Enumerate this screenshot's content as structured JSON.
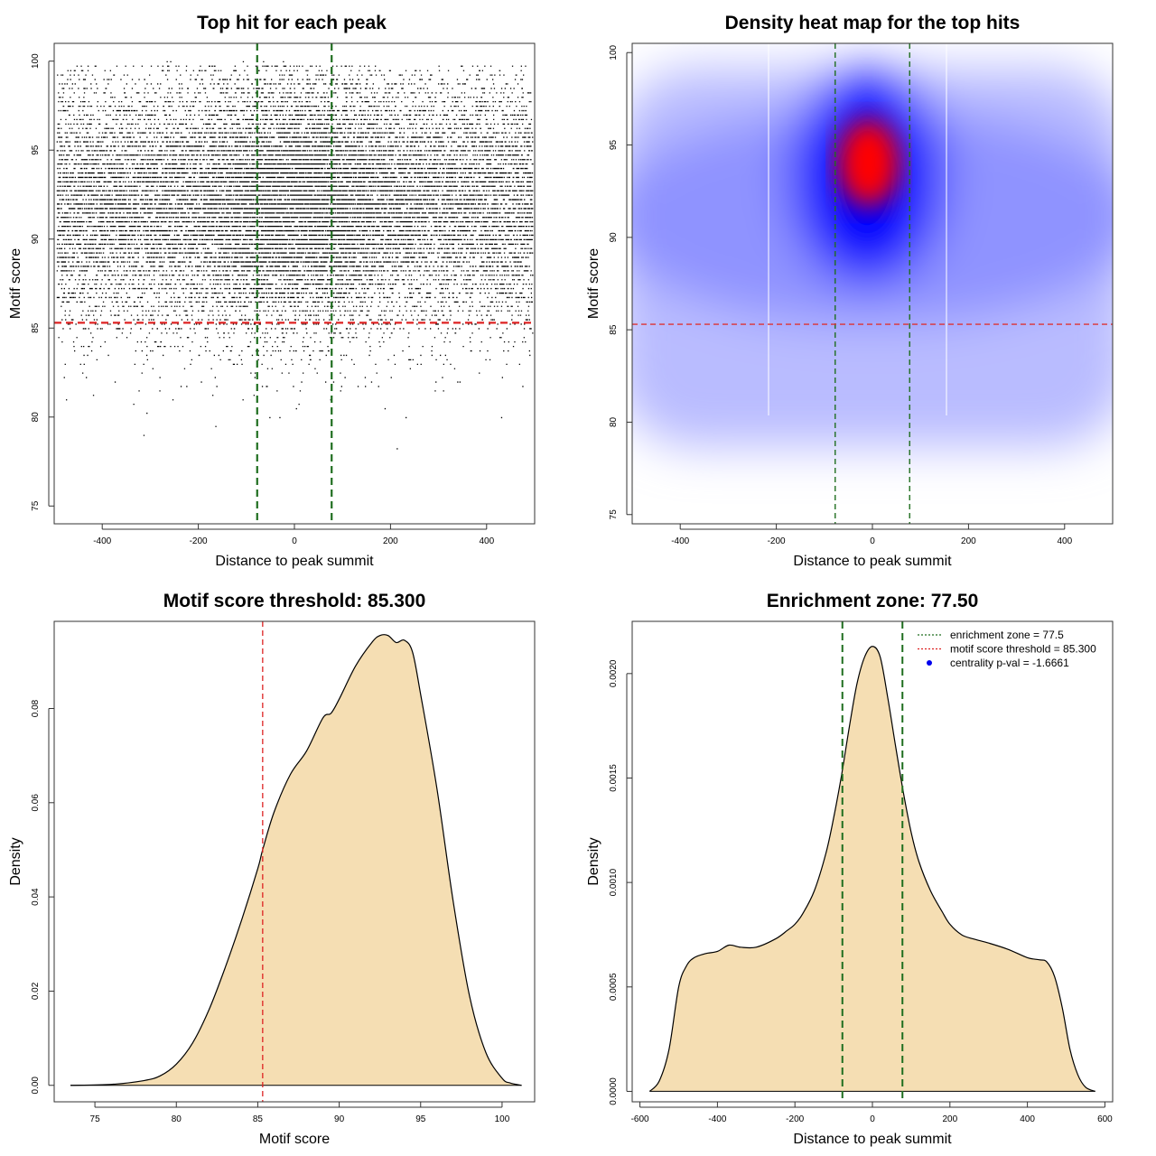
{
  "chart_data": [
    {
      "type": "scatter",
      "title": "Top hit for each peak",
      "xlabel": "Distance to peak summit",
      "ylabel": "Motif score",
      "xlim": [
        -500,
        500
      ],
      "ylim": [
        74,
        101
      ],
      "xticks": [
        -400,
        -200,
        0,
        200,
        400
      ],
      "yticks": [
        75,
        80,
        85,
        90,
        95,
        100
      ],
      "n_points": 20000,
      "point_distribution": {
        "score_mean": 92.0,
        "score_sd": 3.4,
        "central_fraction": 0.25,
        "central_sd": 110
      },
      "hlines": [
        {
          "value": 85.3,
          "color": "#dd2222"
        }
      ],
      "vlines": [
        {
          "value": -77.5,
          "color": "#1f6e1f"
        },
        {
          "value": 77.5,
          "color": "#1f6e1f"
        }
      ]
    },
    {
      "type": "heatmap",
      "title": "Density heat map for the top hits",
      "xlabel": "Distance to peak summit",
      "ylabel": "Motif score",
      "xlim": [
        -500,
        500
      ],
      "ylim": [
        74.5,
        100.5
      ],
      "xticks": [
        -400,
        -200,
        0,
        200,
        400
      ],
      "yticks": [
        75,
        80,
        85,
        90,
        95,
        100
      ],
      "peak": {
        "x": 0,
        "y": 93.5
      },
      "hlines": [
        {
          "value": 85.3,
          "color": "#dd3333"
        }
      ],
      "vlines": [
        {
          "value": -77.5,
          "color": "#1f6e1f"
        },
        {
          "value": 77.5,
          "color": "#1f6e1f"
        }
      ]
    },
    {
      "type": "area",
      "title": "Motif score threshold: 85.300",
      "xlabel": "Motif score",
      "ylabel": "Density",
      "xlim": [
        72.5,
        102
      ],
      "ylim": [
        -0.0035,
        0.0985
      ],
      "xticks": [
        75,
        80,
        85,
        90,
        95,
        100
      ],
      "yticks": [
        0.0,
        0.02,
        0.04,
        0.06,
        0.08
      ],
      "ytick_labels": [
        "0.00",
        "0.02",
        "0.04",
        "0.06",
        "0.08"
      ],
      "x": [
        73.5,
        76,
        78,
        79,
        80,
        81,
        82,
        83,
        84,
        85,
        85.3,
        86,
        87,
        88,
        89,
        89.5,
        90,
        91,
        92,
        92.5,
        93,
        93.5,
        94,
        94.5,
        95,
        96,
        97,
        98,
        99,
        100,
        100.5,
        101.2
      ],
      "values": [
        0.0,
        0.0002,
        0.001,
        0.002,
        0.0045,
        0.009,
        0.016,
        0.025,
        0.035,
        0.046,
        0.05,
        0.058,
        0.066,
        0.071,
        0.078,
        0.079,
        0.082,
        0.089,
        0.094,
        0.0955,
        0.0955,
        0.094,
        0.0945,
        0.092,
        0.083,
        0.063,
        0.039,
        0.019,
        0.007,
        0.0015,
        0.0005,
        0.0
      ],
      "fill": "#f5deb3",
      "vlines": [
        {
          "value": 85.3,
          "color": "#dd2222"
        }
      ]
    },
    {
      "type": "area",
      "title": "Enrichment zone: 77.50",
      "xlabel": "Distance to peak summit",
      "ylabel": "Density",
      "xlim": [
        -620,
        620
      ],
      "ylim": [
        -5e-05,
        0.00225
      ],
      "xticks": [
        -600,
        -400,
        -200,
        0,
        200,
        400,
        600
      ],
      "yticks": [
        0.0,
        0.0005,
        0.001,
        0.0015,
        0.002
      ],
      "ytick_labels": [
        "0.0000",
        "0.0005",
        "0.0010",
        "0.0015",
        "0.0020"
      ],
      "x": [
        -575,
        -550,
        -525,
        -500,
        -480,
        -460,
        -430,
        -400,
        -370,
        -340,
        -300,
        -250,
        -220,
        -200,
        -180,
        -150,
        -120,
        -100,
        -80,
        -60,
        -40,
        -20,
        0,
        20,
        40,
        60,
        80,
        100,
        120,
        150,
        180,
        200,
        230,
        260,
        300,
        350,
        400,
        430,
        450,
        470,
        490,
        510,
        530,
        550,
        575
      ],
      "values": [
        0.0,
        5e-05,
        0.0002,
        0.0005,
        0.0006,
        0.00064,
        0.00066,
        0.00067,
        0.0007,
        0.00069,
        0.00069,
        0.00073,
        0.00077,
        0.0008,
        0.00085,
        0.00096,
        0.00114,
        0.00131,
        0.00151,
        0.00174,
        0.00195,
        0.00208,
        0.00213,
        0.00208,
        0.00188,
        0.00165,
        0.00143,
        0.00124,
        0.0011,
        0.00096,
        0.00086,
        0.0008,
        0.00075,
        0.00073,
        0.00071,
        0.00068,
        0.00064,
        0.00063,
        0.00062,
        0.00055,
        0.0004,
        0.0002,
        8e-05,
        2e-05,
        0.0
      ],
      "fill": "#f5deb3",
      "vlines": [
        {
          "value": -77.5,
          "color": "#1f6e1f"
        },
        {
          "value": 77.5,
          "color": "#1f6e1f"
        }
      ],
      "legend": [
        {
          "label": "enrichment zone = 77.5",
          "color": "#1f6e1f",
          "symbol": "dotted-line"
        },
        {
          "label": "motif score threshold = 85.300",
          "color": "#dd2222",
          "symbol": "dotted-line"
        },
        {
          "label": "centrality p-val = -1.6661",
          "color": "#0000ee",
          "symbol": "dot"
        }
      ],
      "legend_position": "top-right"
    }
  ]
}
